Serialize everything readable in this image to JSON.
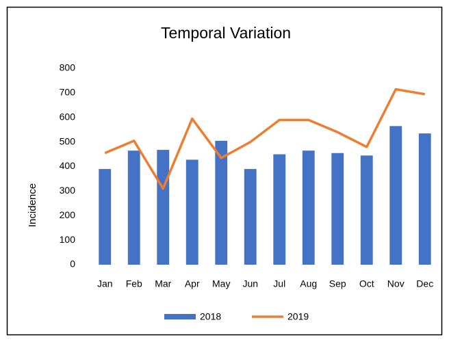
{
  "chart_data": {
    "type": "bar",
    "title": "Temporal Variation",
    "ylabel": "Incidence",
    "categories": [
      "Jan",
      "Feb",
      "Mar",
      "Apr",
      "May",
      "Jun",
      "Jul",
      "Aug",
      "Sep",
      "Oct",
      "Nov",
      "Dec"
    ],
    "series": [
      {
        "name": "2018",
        "type": "bar",
        "color": "#4472c4",
        "values": [
          390,
          465,
          468,
          428,
          505,
          390,
          450,
          465,
          455,
          445,
          565,
          535
        ]
      },
      {
        "name": "2019",
        "type": "line",
        "color": "#ed7d31",
        "values": [
          455,
          505,
          310,
          595,
          435,
          500,
          590,
          590,
          540,
          480,
          715,
          695
        ]
      }
    ],
    "ylim": [
      0,
      800
    ],
    "yticks": [
      0,
      100,
      200,
      300,
      400,
      500,
      600,
      700,
      800
    ],
    "grid": false,
    "legend": "bottom"
  }
}
